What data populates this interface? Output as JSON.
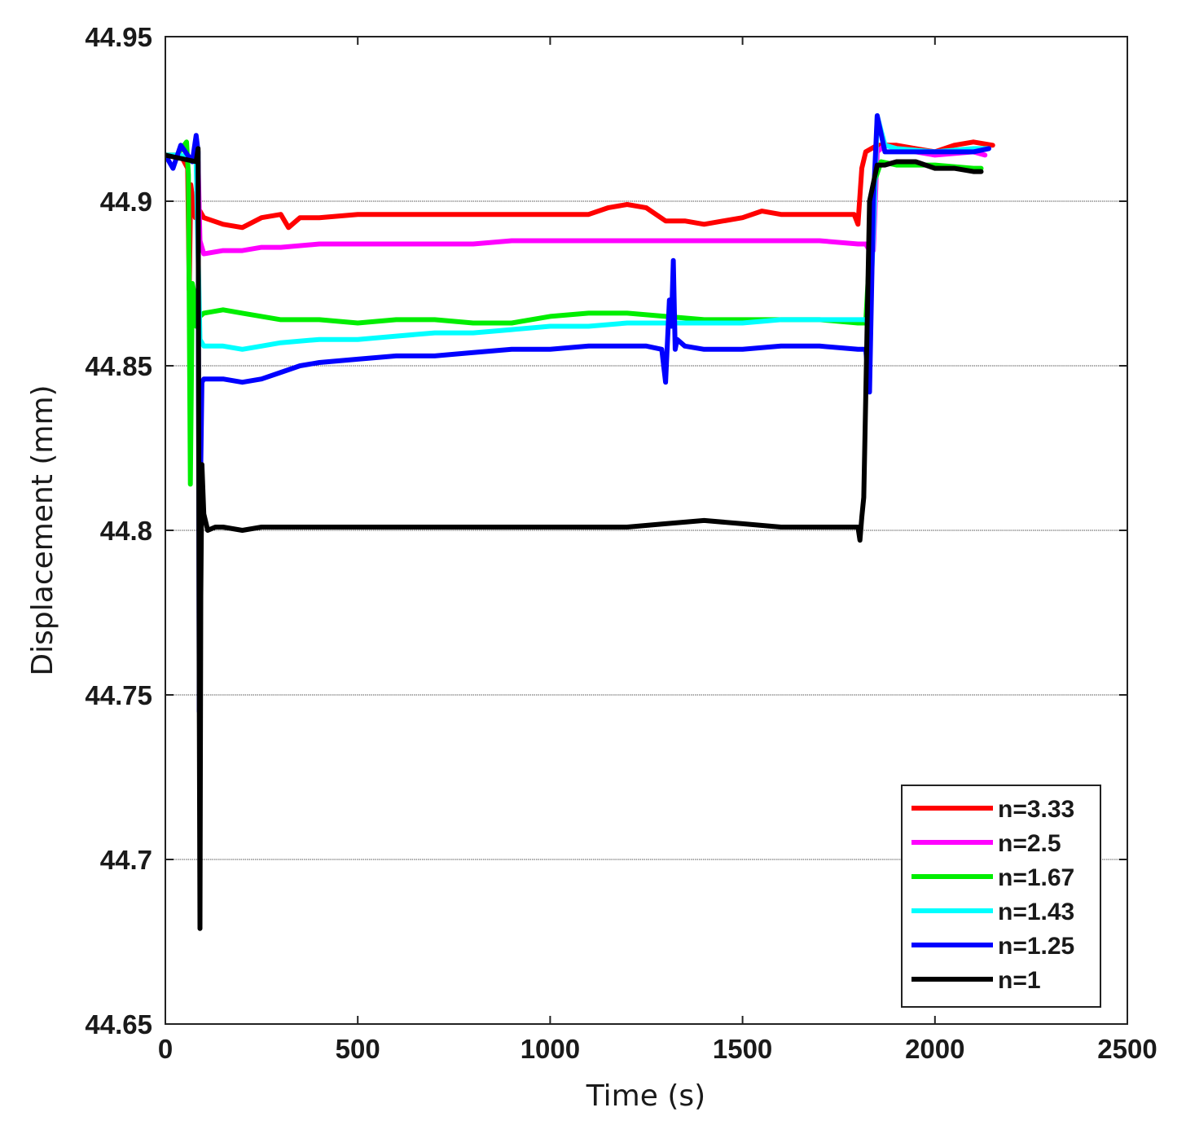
{
  "chart_data": {
    "type": "line",
    "title": "",
    "xlabel": "Time (s)",
    "ylabel": "Displacement (mm)",
    "xlim": [
      0,
      2500
    ],
    "ylim": [
      44.65,
      44.95
    ],
    "xticks": [
      0,
      500,
      1000,
      1500,
      2000,
      2500
    ],
    "xtick_labels": [
      "0",
      "500",
      "1000",
      "1500",
      "2000",
      "2500"
    ],
    "yticks": [
      44.65,
      44.7,
      44.75,
      44.8,
      44.85,
      44.9,
      44.95
    ],
    "ytick_labels": [
      "44.65",
      "44.7",
      "44.75",
      "44.8",
      "44.85",
      "44.9",
      "44.95"
    ],
    "grid": "horizontal",
    "legend_position": "bottom-right",
    "series": [
      {
        "name": "n=3.33",
        "color": "#ff0000",
        "x": [
          0,
          40,
          58,
          62,
          66,
          78,
          90,
          100,
          150,
          200,
          250,
          300,
          320,
          350,
          400,
          500,
          600,
          700,
          800,
          900,
          1000,
          1100,
          1150,
          1200,
          1250,
          1300,
          1350,
          1400,
          1450,
          1500,
          1550,
          1600,
          1700,
          1790,
          1800,
          1810,
          1820,
          1850,
          1900,
          1950,
          2000,
          2050,
          2100,
          2150
        ],
        "y": [
          44.914,
          44.914,
          44.91,
          44.873,
          44.905,
          44.895,
          44.897,
          44.895,
          44.893,
          44.892,
          44.895,
          44.896,
          44.892,
          44.895,
          44.895,
          44.896,
          44.896,
          44.896,
          44.896,
          44.896,
          44.896,
          44.896,
          44.898,
          44.899,
          44.898,
          44.894,
          44.894,
          44.893,
          44.894,
          44.895,
          44.897,
          44.896,
          44.896,
          44.896,
          44.893,
          44.91,
          44.915,
          44.917,
          44.917,
          44.916,
          44.915,
          44.917,
          44.918,
          44.917
        ]
      },
      {
        "name": "n=2.5",
        "color": "#ff00ff",
        "x": [
          0,
          50,
          85,
          90,
          100,
          150,
          200,
          250,
          300,
          400,
          500,
          600,
          700,
          800,
          900,
          1000,
          1100,
          1200,
          1300,
          1400,
          1500,
          1600,
          1700,
          1800,
          1820,
          1830,
          1840,
          1850,
          1870,
          1900,
          2000,
          2100,
          2130
        ],
        "y": [
          44.914,
          44.913,
          44.912,
          44.888,
          44.884,
          44.885,
          44.885,
          44.886,
          44.886,
          44.887,
          44.887,
          44.887,
          44.887,
          44.887,
          44.888,
          44.888,
          44.888,
          44.888,
          44.888,
          44.888,
          44.888,
          44.888,
          44.888,
          44.887,
          44.887,
          44.885,
          44.885,
          44.915,
          44.917,
          44.916,
          44.914,
          44.915,
          44.914
        ]
      },
      {
        "name": "n=1.67",
        "color": "#00ee00",
        "x": [
          0,
          30,
          55,
          60,
          65,
          70,
          75,
          80,
          90,
          100,
          150,
          200,
          250,
          300,
          400,
          500,
          600,
          700,
          800,
          900,
          1000,
          1100,
          1200,
          1300,
          1400,
          1500,
          1600,
          1700,
          1800,
          1820,
          1840,
          1860,
          1900,
          2000,
          2100,
          2120
        ],
        "y": [
          44.914,
          44.914,
          44.918,
          44.908,
          44.814,
          44.875,
          44.872,
          44.862,
          44.865,
          44.866,
          44.867,
          44.866,
          44.865,
          44.864,
          44.864,
          44.863,
          44.864,
          44.864,
          44.863,
          44.863,
          44.865,
          44.866,
          44.866,
          44.865,
          44.864,
          44.864,
          44.864,
          44.864,
          44.863,
          44.863,
          44.905,
          44.912,
          44.911,
          44.911,
          44.91,
          44.91
        ]
      },
      {
        "name": "n=1.43",
        "color": "#00ffff",
        "x": [
          0,
          40,
          80,
          90,
          100,
          150,
          200,
          250,
          300,
          400,
          500,
          600,
          700,
          800,
          900,
          1000,
          1100,
          1200,
          1300,
          1400,
          1500,
          1600,
          1700,
          1800,
          1820,
          1830,
          1840,
          1850,
          1870,
          1900,
          2000,
          2100,
          2140
        ],
        "y": [
          44.914,
          44.914,
          44.912,
          44.858,
          44.856,
          44.856,
          44.855,
          44.856,
          44.857,
          44.858,
          44.858,
          44.859,
          44.86,
          44.86,
          44.861,
          44.862,
          44.862,
          44.863,
          44.863,
          44.863,
          44.863,
          44.864,
          44.864,
          44.864,
          44.864,
          44.862,
          44.89,
          44.926,
          44.917,
          44.916,
          44.915,
          44.916,
          44.916
        ]
      },
      {
        "name": "n=1.25",
        "color": "#0000ff",
        "x": [
          0,
          20,
          40,
          70,
          80,
          85,
          88,
          92,
          95,
          100,
          150,
          200,
          250,
          300,
          350,
          400,
          500,
          600,
          700,
          800,
          900,
          1000,
          1100,
          1200,
          1250,
          1290,
          1300,
          1310,
          1315,
          1320,
          1325,
          1330,
          1350,
          1400,
          1500,
          1600,
          1700,
          1800,
          1820,
          1830,
          1840,
          1850,
          1870,
          1900,
          2000,
          2100,
          2140
        ],
        "y": [
          44.914,
          44.91,
          44.917,
          44.912,
          44.92,
          44.915,
          44.745,
          44.82,
          44.845,
          44.846,
          44.846,
          44.845,
          44.846,
          44.848,
          44.85,
          44.851,
          44.852,
          44.853,
          44.853,
          44.854,
          44.855,
          44.855,
          44.856,
          44.856,
          44.856,
          44.855,
          44.845,
          44.87,
          44.862,
          44.882,
          44.855,
          44.858,
          44.856,
          44.855,
          44.855,
          44.856,
          44.856,
          44.855,
          44.855,
          44.842,
          44.9,
          44.926,
          44.915,
          44.915,
          44.915,
          44.915,
          44.916
        ]
      },
      {
        "name": "n=1",
        "color": "#000000",
        "x": [
          0,
          40,
          80,
          85,
          88,
          90,
          92,
          95,
          100,
          110,
          130,
          150,
          200,
          250,
          300,
          400,
          500,
          600,
          700,
          800,
          900,
          1000,
          1100,
          1200,
          1300,
          1400,
          1500,
          1600,
          1700,
          1780,
          1800,
          1805,
          1810,
          1815,
          1820,
          1830,
          1850,
          1870,
          1900,
          1950,
          2000,
          2050,
          2100,
          2120
        ],
        "y": [
          44.914,
          44.913,
          44.912,
          44.916,
          44.75,
          44.679,
          44.78,
          44.82,
          44.805,
          44.8,
          44.801,
          44.801,
          44.8,
          44.801,
          44.801,
          44.801,
          44.801,
          44.801,
          44.801,
          44.801,
          44.801,
          44.801,
          44.801,
          44.801,
          44.802,
          44.803,
          44.802,
          44.801,
          44.801,
          44.801,
          44.801,
          44.797,
          44.804,
          44.81,
          44.84,
          44.9,
          44.911,
          44.911,
          44.912,
          44.912,
          44.91,
          44.91,
          44.909,
          44.909
        ]
      }
    ]
  }
}
